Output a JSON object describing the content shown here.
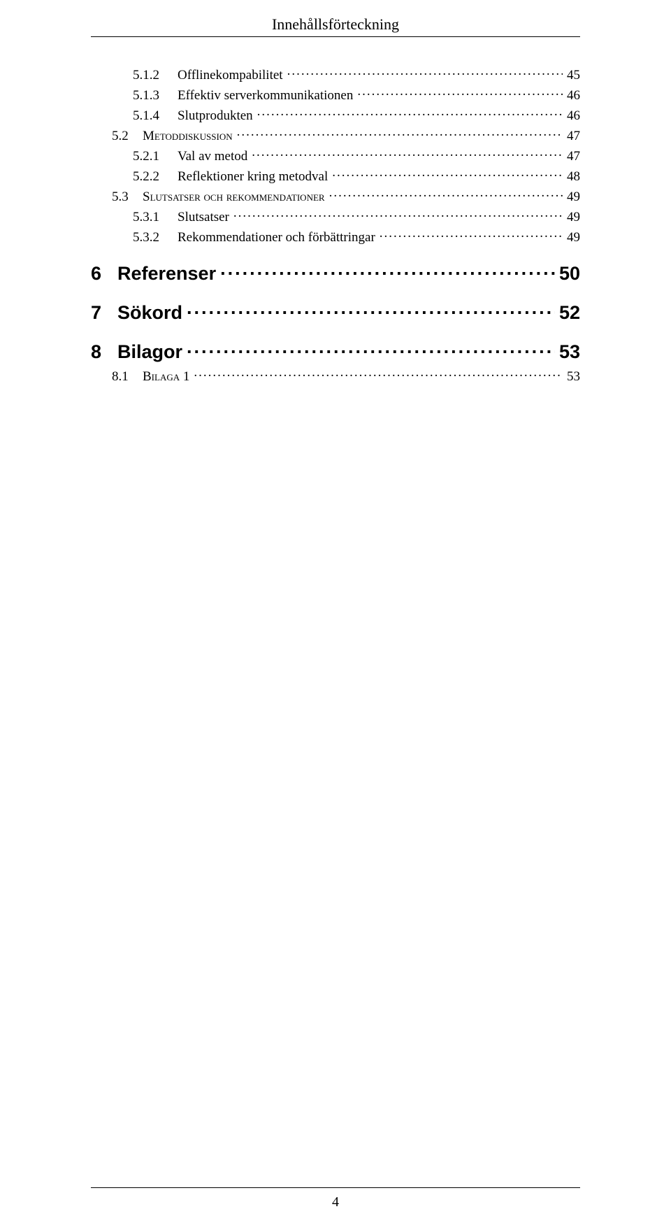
{
  "header": {
    "title": "Innehållsförteckning"
  },
  "toc": [
    {
      "level": 3,
      "num": "5.1.2",
      "label": "Offlinekompabilitet",
      "page": "45"
    },
    {
      "level": 3,
      "num": "5.1.3",
      "label": "Effektiv serverkommunikationen",
      "page": "46"
    },
    {
      "level": 3,
      "num": "5.1.4",
      "label": "Slutprodukten",
      "page": "46"
    },
    {
      "level": 2,
      "num": "5.2",
      "label": "Metoddiskussion",
      "page": "47"
    },
    {
      "level": 3,
      "num": "5.2.1",
      "label": "Val av metod",
      "page": "47"
    },
    {
      "level": 3,
      "num": "5.2.2",
      "label": "Reflektioner kring metodval",
      "page": "48"
    },
    {
      "level": 2,
      "num": "5.3",
      "label": "Slutsatser och rekommendationer",
      "page": "49"
    },
    {
      "level": 3,
      "num": "5.3.1",
      "label": "Slutsatser",
      "page": "49"
    },
    {
      "level": 3,
      "num": "5.3.2",
      "label": "Rekommendationer och förbättringar",
      "page": "49"
    },
    {
      "level": 1,
      "num": "6",
      "label": "Referenser",
      "page": "50"
    },
    {
      "level": 1,
      "num": "7",
      "label": "Sökord",
      "page": "52"
    },
    {
      "level": 1,
      "num": "8",
      "label": "Bilagor",
      "page": "53"
    },
    {
      "level": 2,
      "num": "8.1",
      "label": "Bilaga 1",
      "page": "53"
    }
  ],
  "footer": {
    "pageNumber": "4"
  }
}
